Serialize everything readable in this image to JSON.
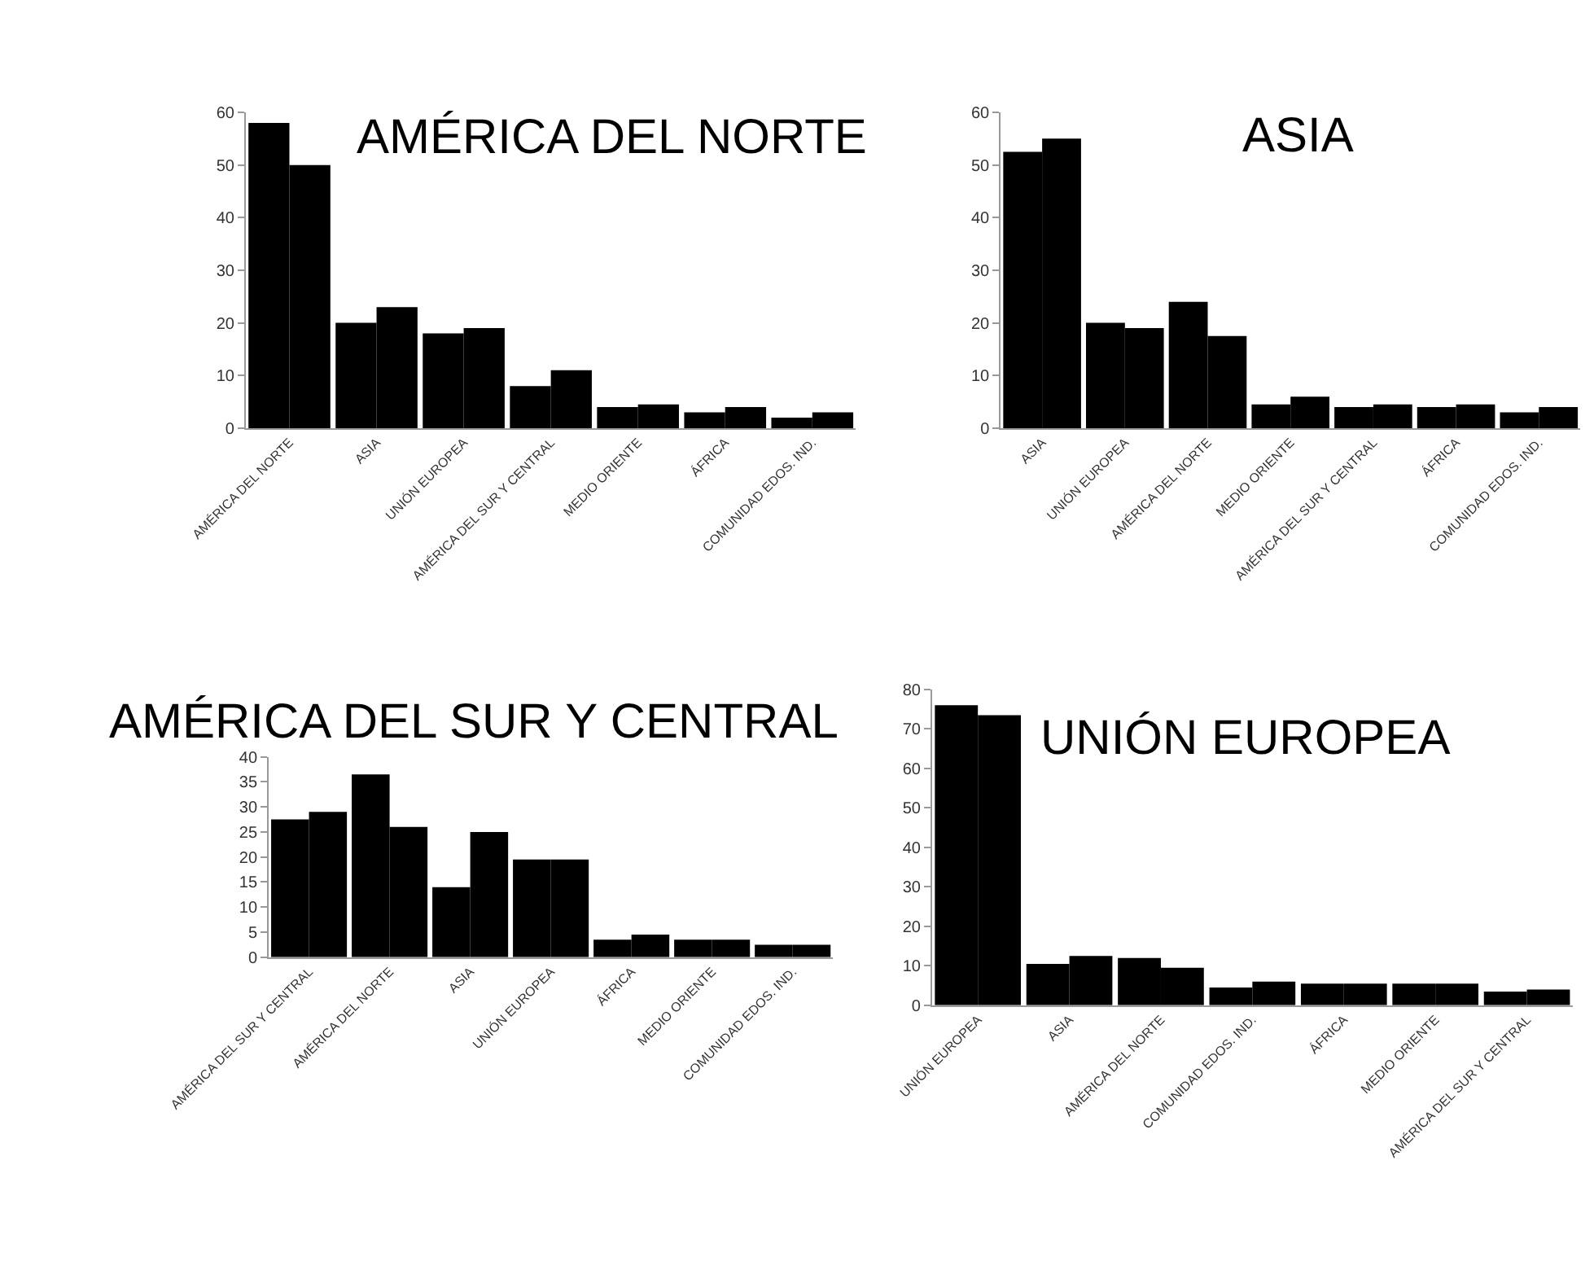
{
  "chart_data": [
    {
      "type": "bar",
      "title": "AMÉRICA DEL NORTE",
      "categories": [
        "AMÉRICA DEL NORTE",
        "ASIA",
        "UNIÓN EUROPEA",
        "AMÉRICA DEL SUR Y CENTRAL",
        "MEDIO ORIENTE",
        "ÁFRICA",
        "COMUNIDAD EDOS. IND."
      ],
      "series": [
        {
          "color": "#000000",
          "values": [
            58,
            20,
            18,
            8,
            4,
            3,
            2
          ]
        },
        {
          "color": "#000000",
          "values": [
            50,
            23,
            19,
            11,
            4.5,
            4,
            3
          ]
        }
      ],
      "ylim": [
        0,
        60
      ],
      "yticks": [
        0,
        10,
        20,
        30,
        40,
        50,
        60
      ]
    },
    {
      "type": "bar",
      "title": "ASIA",
      "categories": [
        "ASIA",
        "UNIÓN EUROPEA",
        "AMÉRICA DEL NORTE",
        "MEDIO ORIENTE",
        "AMÉRICA DEL SUR Y CENTRAL",
        "ÁFRICA",
        "COMUNIDAD EDOS. IND."
      ],
      "series": [
        {
          "color": "#000000",
          "values": [
            52.5,
            20,
            24,
            4.5,
            4,
            4,
            3
          ]
        },
        {
          "color": "#000000",
          "values": [
            55,
            19,
            17.5,
            6,
            4.5,
            4.5,
            4
          ]
        }
      ],
      "ylim": [
        0,
        60
      ],
      "yticks": [
        0,
        10,
        20,
        30,
        40,
        50,
        60
      ]
    },
    {
      "type": "bar",
      "title": "AMÉRICA DEL SUR Y CENTRAL",
      "categories": [
        "AMÉRICA DEL SUR Y CENTRAL",
        "AMÉRICA DEL NORTE",
        "ASIA",
        "UNIÓN EUROPEA",
        "ÁFRICA",
        "MEDIO ORIENTE",
        "COMUNIDAD EDOS. IND."
      ],
      "series": [
        {
          "color": "#000000",
          "values": [
            27.5,
            36.5,
            14,
            19.5,
            3.5,
            3.5,
            2.5
          ]
        },
        {
          "color": "#000000",
          "values": [
            29,
            26,
            25,
            19.5,
            4.5,
            3.5,
            2.5
          ]
        }
      ],
      "ylim": [
        0,
        40
      ],
      "yticks": [
        0,
        5,
        10,
        15,
        20,
        25,
        30,
        35,
        40
      ]
    },
    {
      "type": "bar",
      "title": "UNIÓN EUROPEA",
      "categories": [
        "UNIÓN EUROPEA",
        "ASIA",
        "AMÉRICA DEL NORTE",
        "COMUNIDAD EDOS. IND.",
        "ÁFRICA",
        "MEDIO ORIENTE",
        "AMÉRICA DEL SUR Y CENTRAL"
      ],
      "series": [
        {
          "color": "#000000",
          "values": [
            76,
            10.5,
            12,
            4.5,
            5.5,
            5.5,
            3.5
          ]
        },
        {
          "color": "#000000",
          "values": [
            73.5,
            12.5,
            9.5,
            6,
            5.5,
            5.5,
            4
          ]
        }
      ],
      "ylim": [
        0,
        80
      ],
      "yticks": [
        0,
        10,
        20,
        30,
        40,
        50,
        60,
        70,
        80
      ]
    }
  ]
}
